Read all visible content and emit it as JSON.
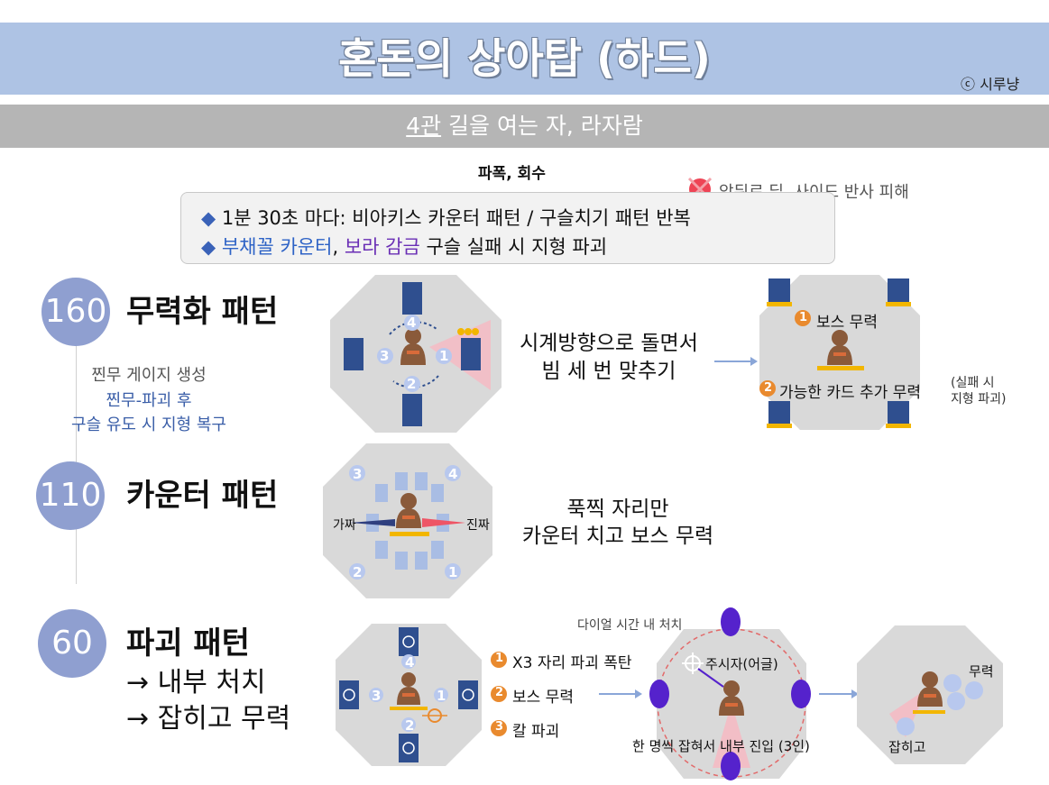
{
  "header": {
    "title": "혼돈의 상아탑 (하드)",
    "credit": "ⓒ 시루냥",
    "subtitle_num": "4관",
    "subtitle_rest": " 길을 여는 자, 라자람"
  },
  "top": {
    "note": "파폭, 회수",
    "warning": "앞뒤로 딜, 사이드 반사 피해",
    "info": {
      "line1": "1분 30초 마다: 비아키스 카운터 패턴 / 구슬치기 패턴 반복",
      "line2_a": "부채꼴 카운터",
      "line2_b": ", ",
      "line2_c": "보라 감금",
      "line2_d": " 구슬 실패 시 지형 파괴"
    }
  },
  "phases": [
    {
      "number": "160",
      "title": "무력화 패턴",
      "sub1": "찐무 게이지 생성",
      "sub2": "찐무-파괴 후",
      "sub3": "구슬 유도 시 지형 복구",
      "arena_labels": [
        "4",
        "3",
        "1",
        "2"
      ],
      "desc1": "시계방향으로 돌면서",
      "desc2": "빔 세 번 맞추기",
      "step1": "보스 무력",
      "step2": "가능한 카드 추가 무력",
      "note1": "(실패 시",
      "note2": "지형 파괴)"
    },
    {
      "number": "110",
      "title": "카운터 패턴",
      "corners": [
        "3",
        "4",
        "2",
        "1"
      ],
      "fake": "가짜",
      "real": "진짜",
      "desc1": "푹찍 자리만",
      "desc2": "카운터 치고 보스 무력"
    },
    {
      "number": "60",
      "title": "파괴 패턴",
      "sub1": "→ 내부 처치",
      "sub2": "→ 잡히고 무력",
      "arena_labels": [
        "4",
        "3",
        "1",
        "2"
      ],
      "steps": [
        "X3 자리 파괴 폭탄",
        "보스 무력",
        "칼 파괴"
      ],
      "dial": "다이얼 시간 내 처치",
      "target": "주시자(어글)",
      "inside": "한 명씩 잡혀서 내부 진입 (3인)",
      "stun": "무력",
      "grab": "잡히고"
    }
  ],
  "colors": {
    "title_bar": "#aec3e4",
    "sub_bar": "#b5b5b5",
    "phase_circle": "#8f9fd0",
    "card_blue": "#2f4f8f",
    "platform_yellow": "#f2b600",
    "purple_orb": "#5522cc",
    "orange_num": "#e98a2e",
    "warn_red": "#ee4455"
  }
}
